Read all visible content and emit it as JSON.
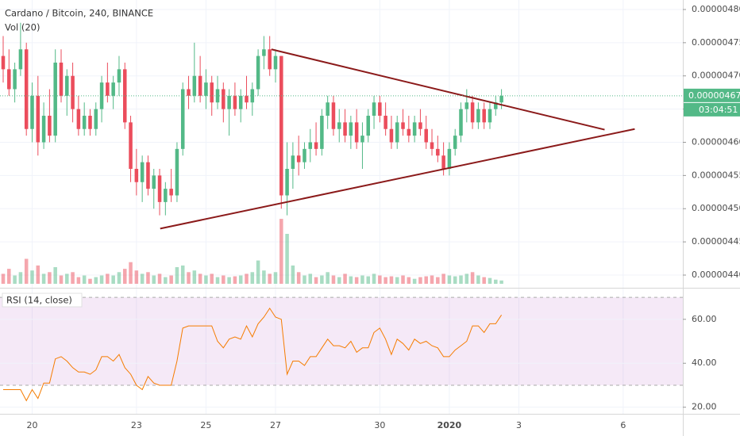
{
  "chart_data": {
    "type": "candlestick",
    "title": "Cardano / Bitcoin, 240, BINANCE",
    "grid": true,
    "colors": {
      "up": "#53b987",
      "down": "#eb4d5c"
    },
    "xlim": [
      -0.55,
      117.3
    ],
    "xticks": [
      {
        "value": 5,
        "label": "20"
      },
      {
        "value": 23,
        "label": "23"
      },
      {
        "value": 35,
        "label": "25"
      },
      {
        "value": 47,
        "label": "27"
      },
      {
        "value": 65,
        "label": "30"
      },
      {
        "value": 77,
        "label": "2020"
      },
      {
        "value": 89,
        "label": "3"
      },
      {
        "value": 107,
        "label": "6"
      }
    ],
    "ylim": [
      4.3809e-06,
      4.8143e-06
    ],
    "yticks": [
      {
        "value": 4.4e-06,
        "label": "0.00000440"
      },
      {
        "value": 4.45e-06,
        "label": "0.00000445"
      },
      {
        "value": 4.5e-06,
        "label": "0.00000450"
      },
      {
        "value": 4.55e-06,
        "label": "0.00000455"
      },
      {
        "value": 4.6e-06,
        "label": "0.00000460"
      },
      {
        "value": 4.65e-06,
        "label": "0.00000465"
      },
      {
        "value": 4.7e-06,
        "label": "0.00000470"
      },
      {
        "value": 4.75e-06,
        "label": "0.00000475"
      },
      {
        "value": 4.8e-06,
        "label": "0.00000480"
      }
    ],
    "ohlc": [
      [
        4.73e-06,
        4.76e-06,
        4.69e-06,
        4.71e-06
      ],
      [
        4.71e-06,
        4.74e-06,
        4.67e-06,
        4.68e-06
      ],
      [
        4.68e-06,
        4.72e-06,
        4.66e-06,
        4.71e-06
      ],
      [
        4.71e-06,
        4.78e-06,
        4.7e-06,
        4.74e-06
      ],
      [
        4.74e-06,
        4.75e-06,
        4.61e-06,
        4.62e-06
      ],
      [
        4.62e-06,
        4.69e-06,
        4.6e-06,
        4.67e-06
      ],
      [
        4.67e-06,
        4.7e-06,
        4.58e-06,
        4.6e-06
      ],
      [
        4.6e-06,
        4.66e-06,
        4.59e-06,
        4.64e-06
      ],
      [
        4.64e-06,
        4.68e-06,
        4.6e-06,
        4.61e-06
      ],
      [
        4.61e-06,
        4.74e-06,
        4.6e-06,
        4.72e-06
      ],
      [
        4.72e-06,
        4.74e-06,
        4.66e-06,
        4.67e-06
      ],
      [
        4.67e-06,
        4.71e-06,
        4.64e-06,
        4.7e-06
      ],
      [
        4.7e-06,
        4.72e-06,
        4.63e-06,
        4.65e-06
      ],
      [
        4.65e-06,
        4.67e-06,
        4.61e-06,
        4.62e-06
      ],
      [
        4.62e-06,
        4.66e-06,
        4.61e-06,
        4.64e-06
      ],
      [
        4.64e-06,
        4.65e-06,
        4.61e-06,
        4.62e-06
      ],
      [
        4.62e-06,
        4.66e-06,
        4.61e-06,
        4.65e-06
      ],
      [
        4.65e-06,
        4.7e-06,
        4.63e-06,
        4.69e-06
      ],
      [
        4.69e-06,
        4.72e-06,
        4.66e-06,
        4.67e-06
      ],
      [
        4.67e-06,
        4.7e-06,
        4.65e-06,
        4.69e-06
      ],
      [
        4.69e-06,
        4.73e-06,
        4.67e-06,
        4.71e-06
      ],
      [
        4.71e-06,
        4.72e-06,
        4.62e-06,
        4.63e-06
      ],
      [
        4.63e-06,
        4.64e-06,
        4.54e-06,
        4.56e-06
      ],
      [
        4.56e-06,
        4.59e-06,
        4.52e-06,
        4.54e-06
      ],
      [
        4.54e-06,
        4.58e-06,
        4.51e-06,
        4.57e-06
      ],
      [
        4.57e-06,
        4.58e-06,
        4.52e-06,
        4.53e-06
      ],
      [
        4.53e-06,
        4.56e-06,
        4.5e-06,
        4.55e-06
      ],
      [
        4.55e-06,
        4.56e-06,
        4.49e-06,
        4.51e-06
      ],
      [
        4.51e-06,
        4.54e-06,
        4.49e-06,
        4.53e-06
      ],
      [
        4.53e-06,
        4.56e-06,
        4.51e-06,
        4.52e-06
      ],
      [
        4.52e-06,
        4.6e-06,
        4.51e-06,
        4.59e-06
      ],
      [
        4.59e-06,
        4.69e-06,
        4.58e-06,
        4.68e-06
      ],
      [
        4.68e-06,
        4.7e-06,
        4.65e-06,
        4.67e-06
      ],
      [
        4.67e-06,
        4.75e-06,
        4.66e-06,
        4.7e-06
      ],
      [
        4.7e-06,
        4.73e-06,
        4.66e-06,
        4.67e-06
      ],
      [
        4.67e-06,
        4.71e-06,
        4.65e-06,
        4.69e-06
      ],
      [
        4.69e-06,
        4.7e-06,
        4.64e-06,
        4.66e-06
      ],
      [
        4.66e-06,
        4.7e-06,
        4.65e-06,
        4.68e-06
      ],
      [
        4.68e-06,
        4.69e-06,
        4.63e-06,
        4.65e-06
      ],
      [
        4.65e-06,
        4.68e-06,
        4.61e-06,
        4.67e-06
      ],
      [
        4.67e-06,
        4.69e-06,
        4.64e-06,
        4.65e-06
      ],
      [
        4.65e-06,
        4.68e-06,
        4.63e-06,
        4.67e-06
      ],
      [
        4.67e-06,
        4.7e-06,
        4.65e-06,
        4.66e-06
      ],
      [
        4.66e-06,
        4.69e-06,
        4.64e-06,
        4.68e-06
      ],
      [
        4.68e-06,
        4.74e-06,
        4.67e-06,
        4.73e-06
      ],
      [
        4.73e-06,
        4.76e-06,
        4.71e-06,
        4.74e-06
      ],
      [
        4.74e-06,
        4.76e-06,
        4.7e-06,
        4.71e-06
      ],
      [
        4.71e-06,
        4.74e-06,
        4.69e-06,
        4.73e-06
      ],
      [
        4.73e-06,
        4.73e-06,
        4.5e-06,
        4.52e-06
      ],
      [
        4.52e-06,
        4.6e-06,
        4.49e-06,
        4.56e-06
      ],
      [
        4.56e-06,
        4.6e-06,
        4.53e-06,
        4.58e-06
      ],
      [
        4.58e-06,
        4.61e-06,
        4.55e-06,
        4.57e-06
      ],
      [
        4.57e-06,
        4.6e-06,
        4.56e-06,
        4.59e-06
      ],
      [
        4.59e-06,
        4.62e-06,
        4.57e-06,
        4.6e-06
      ],
      [
        4.6e-06,
        4.63e-06,
        4.58e-06,
        4.59e-06
      ],
      [
        4.59e-06,
        4.65e-06,
        4.58e-06,
        4.64e-06
      ],
      [
        4.64e-06,
        4.67e-06,
        4.62e-06,
        4.66e-06
      ],
      [
        4.66e-06,
        4.67e-06,
        4.61e-06,
        4.62e-06
      ],
      [
        4.62e-06,
        4.65e-06,
        4.6e-06,
        4.63e-06
      ],
      [
        4.63e-06,
        4.65e-06,
        4.6e-06,
        4.61e-06
      ],
      [
        4.61e-06,
        4.64e-06,
        4.59e-06,
        4.63e-06
      ],
      [
        4.63e-06,
        4.65e-06,
        4.59e-06,
        4.6e-06
      ],
      [
        4.6e-06,
        4.63e-06,
        4.56e-06,
        4.61e-06
      ],
      [
        4.61e-06,
        4.65e-06,
        4.6e-06,
        4.64e-06
      ],
      [
        4.64e-06,
        4.67e-06,
        4.62e-06,
        4.66e-06
      ],
      [
        4.66e-06,
        4.67e-06,
        4.63e-06,
        4.64e-06
      ],
      [
        4.64e-06,
        4.66e-06,
        4.61e-06,
        4.62e-06
      ],
      [
        4.62e-06,
        4.64e-06,
        4.59e-06,
        4.6e-06
      ],
      [
        4.6e-06,
        4.64e-06,
        4.59e-06,
        4.63e-06
      ],
      [
        4.63e-06,
        4.65e-06,
        4.61e-06,
        4.62e-06
      ],
      [
        4.62e-06,
        4.64e-06,
        4.6e-06,
        4.61e-06
      ],
      [
        4.61e-06,
        4.64e-06,
        4.6e-06,
        4.63e-06
      ],
      [
        4.63e-06,
        4.65e-06,
        4.61e-06,
        4.62e-06
      ],
      [
        4.62e-06,
        4.64e-06,
        4.59e-06,
        4.6e-06
      ],
      [
        4.6e-06,
        4.62e-06,
        4.58e-06,
        4.59e-06
      ],
      [
        4.59e-06,
        4.61e-06,
        4.57e-06,
        4.58e-06
      ],
      [
        4.58e-06,
        4.6e-06,
        4.55e-06,
        4.56e-06
      ],
      [
        4.56e-06,
        4.6e-06,
        4.55e-06,
        4.59e-06
      ],
      [
        4.59e-06,
        4.62e-06,
        4.58e-06,
        4.61e-06
      ],
      [
        4.61e-06,
        4.66e-06,
        4.6e-06,
        4.65e-06
      ],
      [
        4.65e-06,
        4.68e-06,
        4.63e-06,
        4.66e-06
      ],
      [
        4.66e-06,
        4.67e-06,
        4.62e-06,
        4.63e-06
      ],
      [
        4.63e-06,
        4.66e-06,
        4.62e-06,
        4.65e-06
      ],
      [
        4.65e-06,
        4.66e-06,
        4.62e-06,
        4.63e-06
      ],
      [
        4.63e-06,
        4.66e-06,
        4.62e-06,
        4.65e-06
      ],
      [
        4.65e-06,
        4.67e-06,
        4.64e-06,
        4.66e-06
      ],
      [
        4.66e-06,
        4.68e-06,
        4.65e-06,
        4.67e-06
      ]
    ],
    "volume": {
      "label": "Vol (20)",
      "values": [
        12,
        18,
        10,
        14,
        30,
        16,
        22,
        12,
        14,
        20,
        10,
        12,
        14,
        8,
        10,
        6,
        8,
        10,
        12,
        10,
        14,
        18,
        26,
        16,
        12,
        14,
        10,
        12,
        8,
        10,
        20,
        22,
        14,
        16,
        12,
        10,
        12,
        8,
        10,
        8,
        9,
        10,
        12,
        14,
        28,
        16,
        12,
        14,
        78,
        60,
        22,
        14,
        10,
        12,
        8,
        10,
        14,
        10,
        8,
        12,
        9,
        8,
        10,
        9,
        12,
        10,
        8,
        9,
        8,
        10,
        8,
        6,
        8,
        9,
        10,
        8,
        12,
        10,
        9,
        10,
        12,
        14,
        10,
        8,
        7,
        5,
        4
      ]
    },
    "rsi": {
      "label": "RSI (14, close)",
      "color": "#f57c00",
      "ylim": [
        17,
        74
      ],
      "bands": [
        30,
        70
      ],
      "yticks": [
        {
          "value": 20,
          "label": "20.00"
        },
        {
          "value": 40,
          "label": "40.00"
        },
        {
          "value": 60,
          "label": "60.00"
        }
      ],
      "values": [
        28,
        28,
        28,
        28,
        23,
        28,
        24,
        31,
        31,
        42,
        43,
        41,
        38,
        36,
        36,
        35,
        37,
        43,
        43,
        41,
        44,
        38,
        35,
        30,
        28,
        34,
        31,
        30,
        30,
        30,
        41,
        56,
        57,
        57,
        57,
        57,
        57,
        50,
        47,
        51,
        52,
        51,
        57,
        52,
        58,
        61,
        65,
        61,
        60,
        35,
        41,
        41,
        39,
        43,
        43,
        47,
        51,
        48,
        48,
        47,
        50,
        45,
        47,
        47,
        54,
        56,
        51,
        44,
        51,
        49,
        46,
        51,
        49,
        50,
        48,
        47,
        43,
        43,
        46,
        48,
        50,
        57,
        57,
        54,
        58,
        58,
        62
      ]
    },
    "trendline_color": "#8b1a1a",
    "trendlines": [
      {
        "x": [
          46.3,
          103.8
        ],
        "y": [
          4.74e-06,
          4.619e-06
        ]
      },
      {
        "x": [
          27.1,
          109.0
        ],
        "y": [
          4.47e-06,
          4.62e-06
        ]
      }
    ],
    "last_price": {
      "value": 4.67e-06,
      "label": "0.00000467"
    },
    "countdown": "03:04:51"
  }
}
